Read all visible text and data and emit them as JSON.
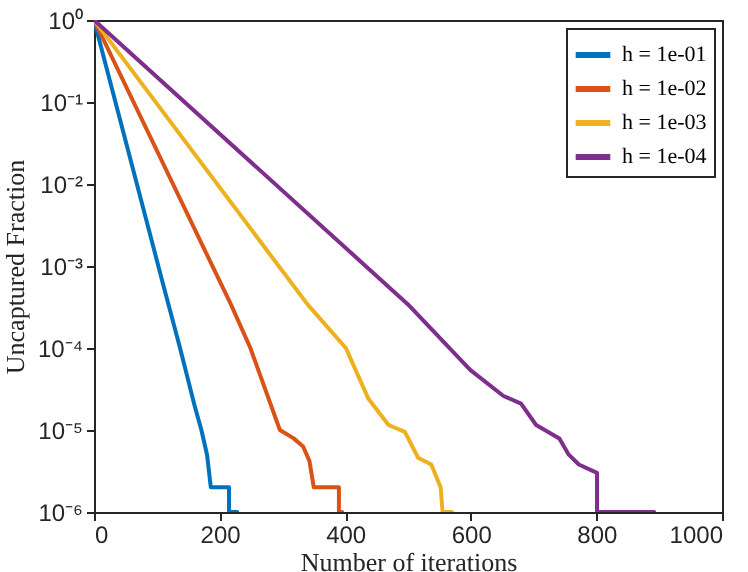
{
  "chart_data": {
    "type": "line",
    "xlabel": "Number of iterations",
    "ylabel": "Uncaptured Fraction",
    "log": true,
    "legend": "top right",
    "xlim": [
      0,
      1000
    ],
    "xticks": [
      0,
      200,
      400,
      600,
      800,
      1000
    ],
    "ylim": [
      1e-06,
      1
    ],
    "yticks": [
      {
        "value": 1e-06,
        "label": "10⁻⁶"
      },
      {
        "value": 1e-05,
        "label": "10⁻⁵"
      },
      {
        "value": 0.0001,
        "label": "10⁻⁴"
      },
      {
        "value": 0.001,
        "label": "10⁻³"
      },
      {
        "value": 0.01,
        "label": "10⁻²"
      },
      {
        "value": 0.1,
        "label": "10⁻¹"
      },
      {
        "value": 1,
        "label": "10⁰"
      }
    ],
    "series": [
      {
        "name": "h = 1e-01",
        "color": "#0072bd",
        "x": [
          0,
          110,
          137,
          160,
          171,
          180,
          186,
          215,
          215,
          228
        ],
        "values": [
          1,
          0.0006,
          0.0001,
          2e-05,
          1e-05,
          5e-06,
          2e-06,
          2e-06,
          1e-06,
          1e-06
        ]
      },
      {
        "name": "h = 1e-02",
        "color": "#d95319",
        "x": [
          0,
          218,
          249,
          296,
          318,
          333,
          343,
          350,
          390,
          390,
          395
        ],
        "values": [
          1,
          0.00034,
          0.0001,
          1e-05,
          7.9e-06,
          6.3e-06,
          4.2e-06,
          2e-06,
          2e-06,
          1e-06,
          1e-06
        ]
      },
      {
        "name": "h = 1e-03",
        "color": "#edb120",
        "x": [
          0,
          340,
          401,
          437,
          469,
          495,
          516,
          537,
          552,
          555,
          570
        ],
        "values": [
          1,
          0.00034,
          0.0001,
          2.4e-05,
          1.15e-05,
          9.5e-06,
          4.6e-06,
          3.8e-06,
          2e-06,
          1e-06,
          1e-06
        ]
      },
      {
        "name": "h = 1e-04",
        "color": "#7e2f8e",
        "x": [
          0,
          500,
          599,
          652,
          680,
          704,
          741,
          756,
          772,
          801,
          801,
          892
        ],
        "values": [
          1,
          0.00034,
          5.4e-05,
          2.6e-05,
          2.1e-05,
          1.15e-05,
          7.9e-06,
          5e-06,
          3.8e-06,
          3e-06,
          1e-06,
          1e-06
        ]
      }
    ]
  }
}
